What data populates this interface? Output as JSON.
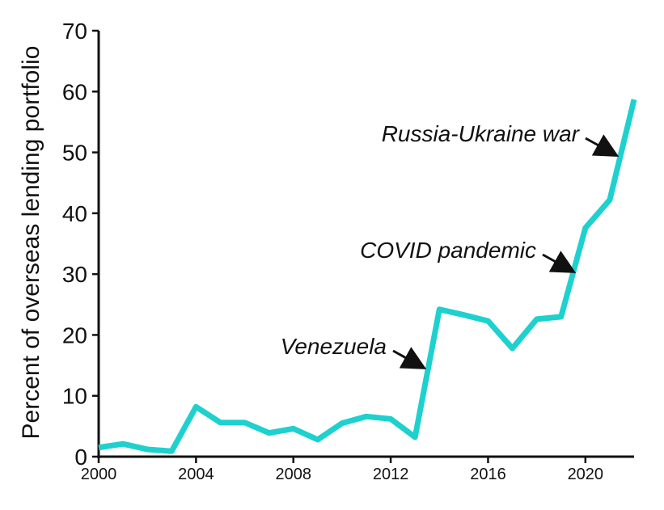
{
  "chart_data": {
    "type": "line",
    "title": "",
    "xlabel": "",
    "ylabel": "Percent of overseas lending portfolio",
    "xlim": [
      2000,
      2022
    ],
    "ylim": [
      0,
      70
    ],
    "x_ticks": [
      2000,
      2004,
      2008,
      2012,
      2016,
      2020
    ],
    "y_ticks": [
      0,
      10,
      20,
      30,
      40,
      50,
      60,
      70
    ],
    "grid": false,
    "legend": "none",
    "series": [
      {
        "color": "#1ed1cf",
        "x": [
          2000,
          2001,
          2002,
          2003,
          2004,
          2005,
          2006,
          2007,
          2008,
          2009,
          2010,
          2011,
          2012,
          2013,
          2014,
          2015,
          2016,
          2017,
          2018,
          2019,
          2020,
          2021,
          2022
        ],
        "y": [
          1.5,
          2.1,
          1.2,
          0.9,
          8.2,
          5.6,
          5.6,
          3.9,
          4.6,
          2.8,
          5.5,
          6.6,
          6.2,
          3.2,
          24.2,
          23.3,
          22.3,
          17.8,
          22.6,
          23.0,
          37.6,
          42.2,
          58.7
        ]
      }
    ],
    "annotations": [
      {
        "text": "Venezuela",
        "x": 2013.1,
        "y": 15.2
      },
      {
        "text": "COVID pandemic",
        "x": 2019.6,
        "y": 30.8
      },
      {
        "text": "Russia-Ukraine war",
        "x": 2021.3,
        "y": 50.3
      }
    ]
  }
}
